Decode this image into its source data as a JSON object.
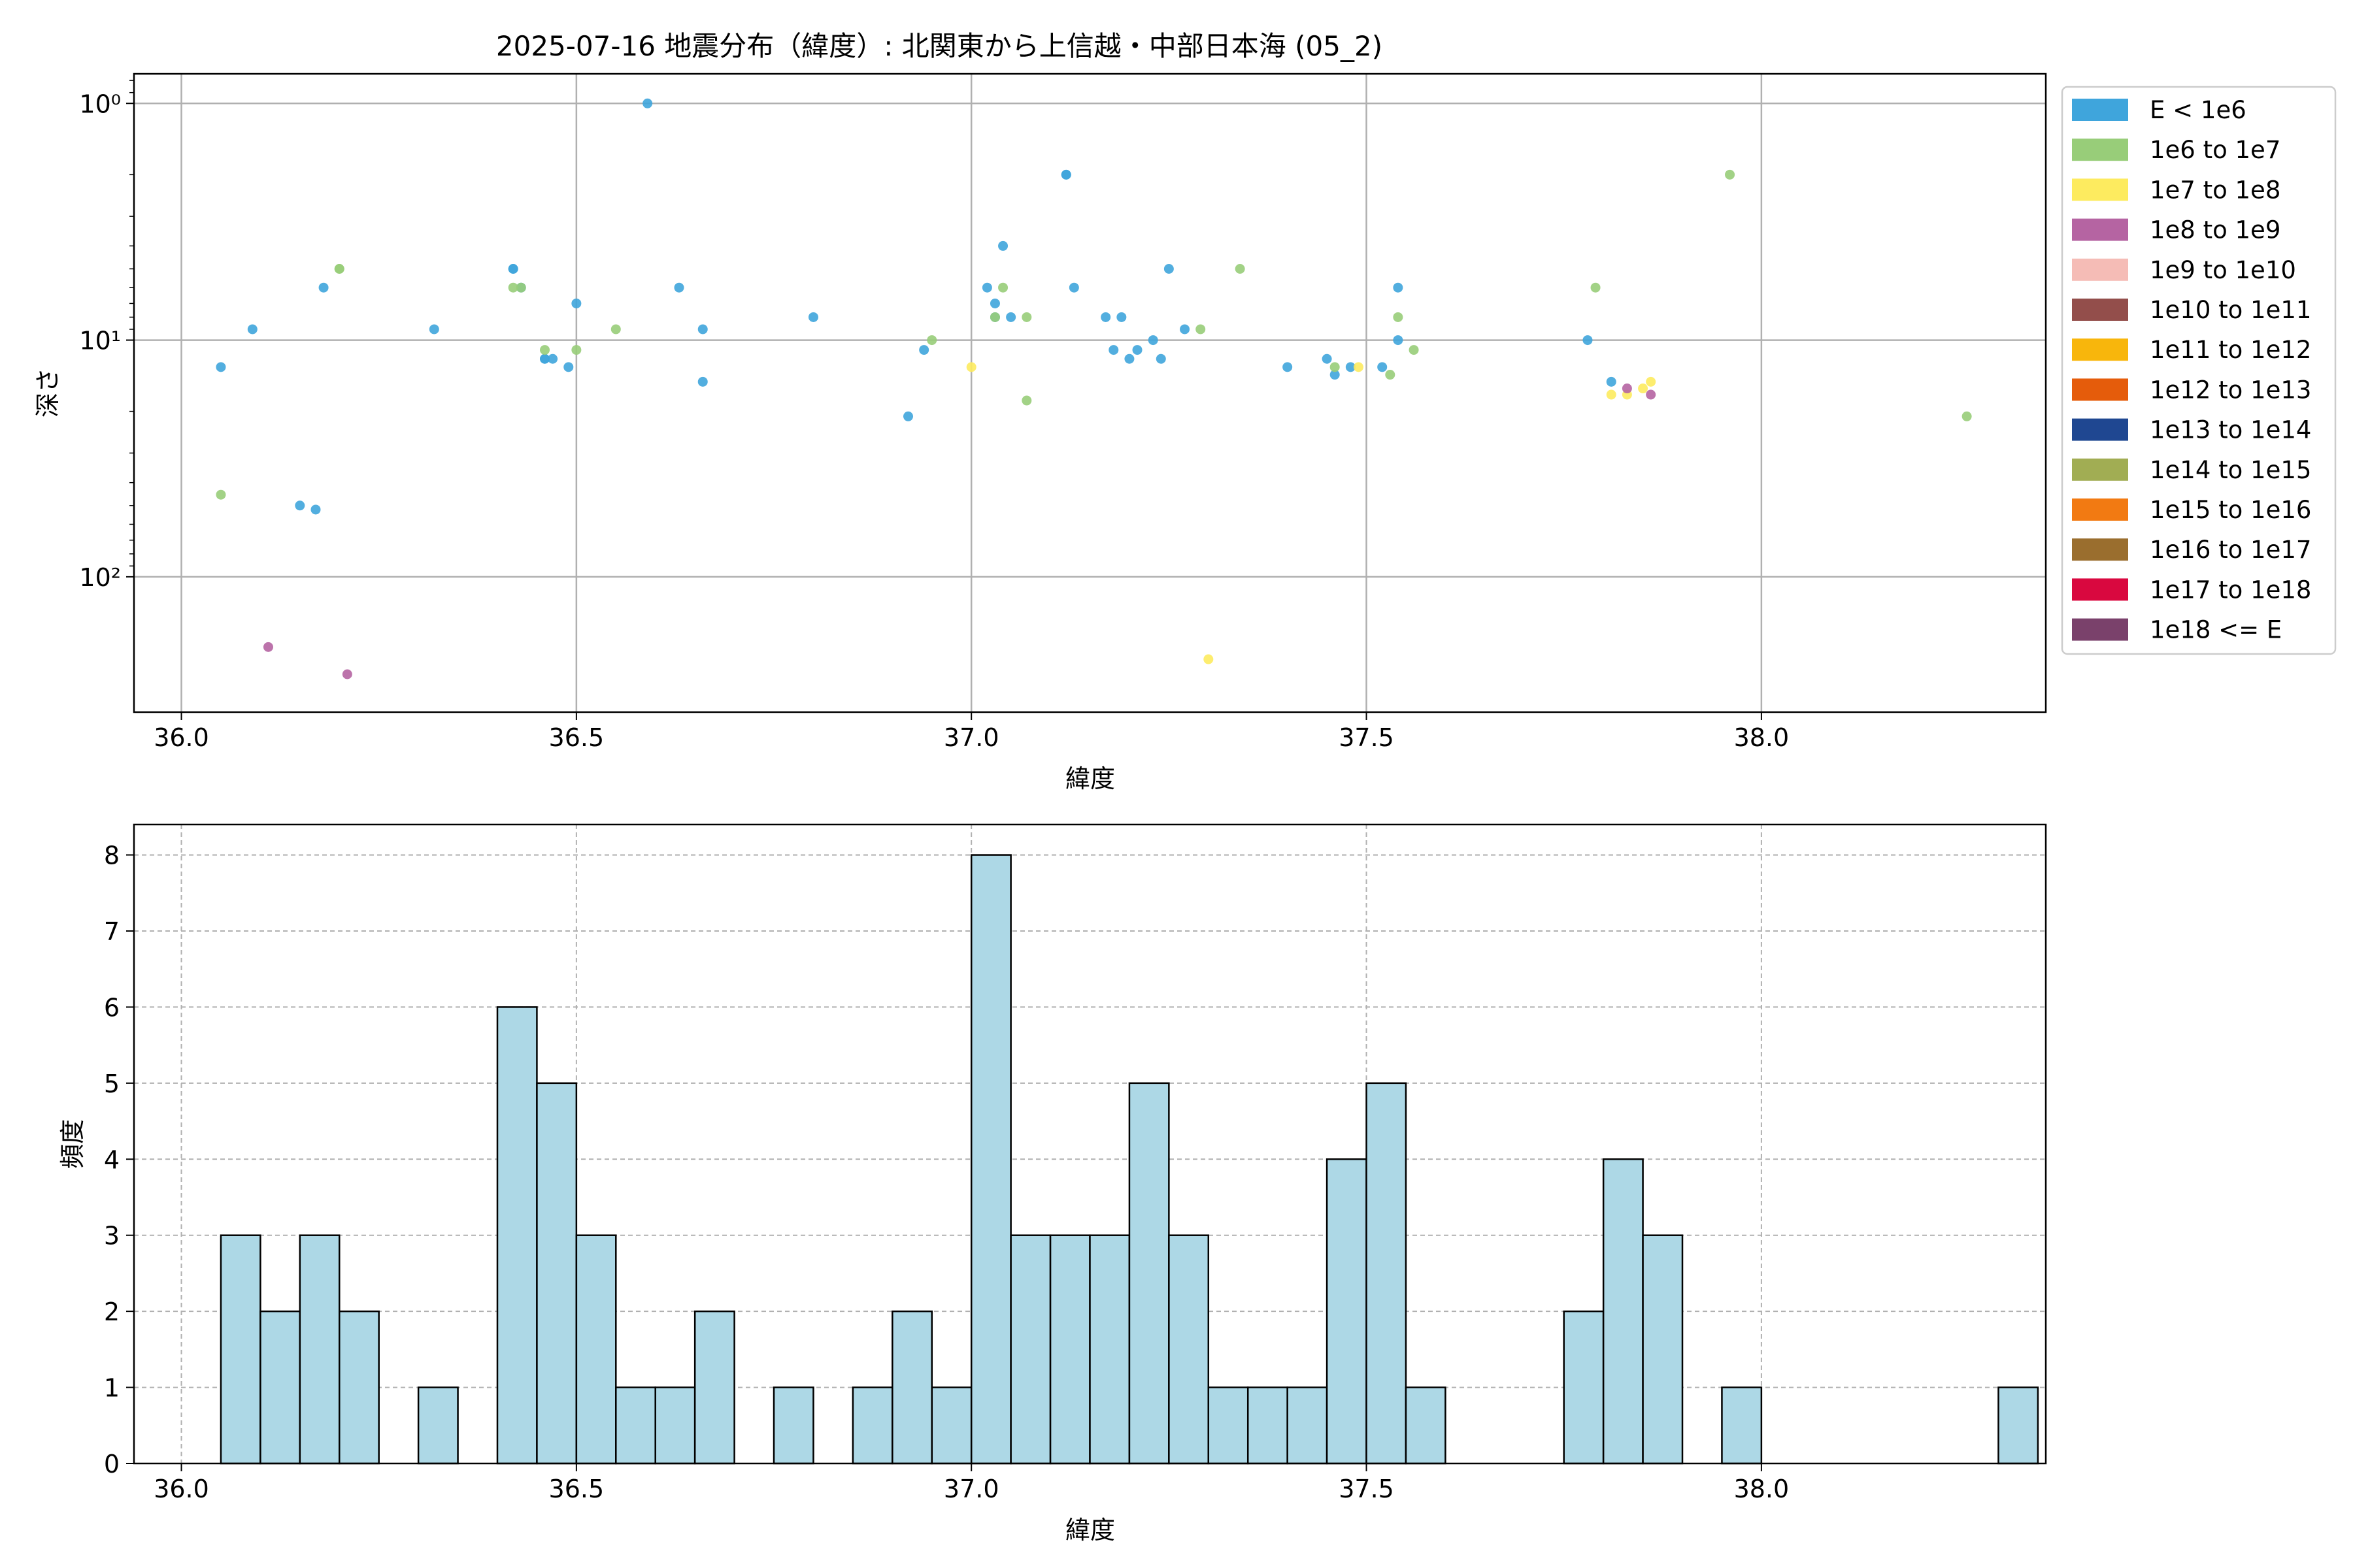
{
  "title": "2025-07-16 地震分布（緯度）: 北関東から上信越・中部日本海 (05_2)",
  "chart_data": [
    {
      "type": "scatter",
      "xlabel": "緯度",
      "ylabel": "深さ",
      "xlim": [
        35.94,
        38.36
      ],
      "ylim": [
        373,
        0.75
      ],
      "yscale": "log",
      "y_inverted": true,
      "grid": true,
      "xticks": [
        36.0,
        36.5,
        37.0,
        37.5,
        38.0
      ],
      "xtick_labels": [
        "36.0",
        "36.5",
        "37.0",
        "37.5",
        "38.0"
      ],
      "yticks": [
        1,
        10,
        100
      ],
      "ytick_labels": [
        "10⁰",
        "10¹",
        "10²"
      ],
      "legend_position": "outside-right",
      "legend": [
        {
          "label": "E < 1e6",
          "color": "#3fa5dc"
        },
        {
          "label": "1e6 to 1e7",
          "color": "#98cd79"
        },
        {
          "label": "1e7 to 1e8",
          "color": "#fdeb5f"
        },
        {
          "label": "1e8 to 1e9",
          "color": "#b564a2"
        },
        {
          "label": "1e9 to 1e10",
          "color": "#f5bcb6"
        },
        {
          "label": "1e10 to 1e11",
          "color": "#934e4b"
        },
        {
          "label": "1e11 to 1e12",
          "color": "#f8b60c"
        },
        {
          "label": "1e12 to 1e13",
          "color": "#e55c0b"
        },
        {
          "label": "1e13 to 1e14",
          "color": "#1f4791"
        },
        {
          "label": "1e14 to 1e15",
          "color": "#a1ad53"
        },
        {
          "label": "1e15 to 1e16",
          "color": "#f27a12"
        },
        {
          "label": "1e16 to 1e17",
          "color": "#9a6e2e"
        },
        {
          "label": "1e17 to 1e18",
          "color": "#d9083f"
        },
        {
          "label": "1e18 <= E",
          "color": "#7a416b"
        }
      ],
      "series": [
        {
          "color": "#3fa5dc",
          "points": [
            [
              36.05,
              13
            ],
            [
              36.09,
              9
            ],
            [
              36.15,
              50
            ],
            [
              36.17,
              52
            ],
            [
              36.18,
              6
            ],
            [
              36.32,
              9
            ],
            [
              36.42,
              5
            ],
            [
              36.42,
              5
            ],
            [
              36.43,
              6
            ],
            [
              36.46,
              12
            ],
            [
              36.46,
              12
            ],
            [
              36.47,
              12
            ],
            [
              36.49,
              13
            ],
            [
              36.5,
              7
            ],
            [
              36.59,
              1
            ],
            [
              36.63,
              6
            ],
            [
              36.66,
              15
            ],
            [
              36.66,
              9
            ],
            [
              36.8,
              8
            ],
            [
              36.92,
              21
            ],
            [
              36.94,
              11
            ],
            [
              37.02,
              6
            ],
            [
              37.03,
              7
            ],
            [
              37.03,
              8
            ],
            [
              37.04,
              4
            ],
            [
              37.05,
              8
            ],
            [
              37.12,
              2
            ],
            [
              37.12,
              2
            ],
            [
              37.13,
              6
            ],
            [
              37.17,
              8
            ],
            [
              37.18,
              11
            ],
            [
              37.19,
              8
            ],
            [
              37.2,
              12
            ],
            [
              37.21,
              11
            ],
            [
              37.23,
              10
            ],
            [
              37.24,
              12
            ],
            [
              37.25,
              5
            ],
            [
              37.27,
              9
            ],
            [
              37.4,
              13
            ],
            [
              37.45,
              12
            ],
            [
              37.46,
              14
            ],
            [
              37.48,
              13
            ],
            [
              37.52,
              13
            ],
            [
              37.54,
              10
            ],
            [
              37.54,
              6
            ],
            [
              37.78,
              10
            ],
            [
              37.81,
              15
            ]
          ]
        },
        {
          "color": "#98cd79",
          "points": [
            [
              36.05,
              45
            ],
            [
              36.2,
              5
            ],
            [
              36.2,
              5
            ],
            [
              36.42,
              6
            ],
            [
              36.43,
              6
            ],
            [
              36.46,
              11
            ],
            [
              36.5,
              11
            ],
            [
              36.55,
              9
            ],
            [
              36.95,
              10
            ],
            [
              37.03,
              8
            ],
            [
              37.04,
              6
            ],
            [
              37.07,
              8
            ],
            [
              37.07,
              18
            ],
            [
              37.29,
              9
            ],
            [
              37.34,
              5
            ],
            [
              37.46,
              13
            ],
            [
              37.53,
              14
            ],
            [
              37.54,
              8
            ],
            [
              37.56,
              11
            ],
            [
              37.79,
              6
            ],
            [
              37.96,
              2
            ],
            [
              38.26,
              21
            ]
          ]
        },
        {
          "color": "#fdeb5f",
          "points": [
            [
              37.0,
              13
            ],
            [
              37.3,
              223
            ],
            [
              37.49,
              13
            ],
            [
              37.81,
              17
            ],
            [
              37.83,
              17
            ],
            [
              37.85,
              16
            ],
            [
              37.86,
              15
            ]
          ]
        },
        {
          "color": "#b564a2",
          "points": [
            [
              36.11,
              198
            ],
            [
              36.21,
              258
            ],
            [
              37.83,
              16
            ],
            [
              37.86,
              17
            ]
          ]
        }
      ]
    },
    {
      "type": "bar",
      "subtype": "histogram",
      "xlabel": "緯度",
      "ylabel": "頻度",
      "xlim": [
        35.94,
        38.36
      ],
      "ylim": [
        0,
        8.4
      ],
      "grid": true,
      "grid_style": "dashed",
      "bar_color": "#add8e6",
      "edge_color": "#000000",
      "xticks": [
        36.0,
        36.5,
        37.0,
        37.5,
        38.0
      ],
      "xtick_labels": [
        "36.0",
        "36.5",
        "37.0",
        "37.5",
        "38.0"
      ],
      "yticks": [
        0,
        1,
        2,
        3,
        4,
        5,
        6,
        7,
        8
      ],
      "ytick_labels": [
        "0",
        "1",
        "2",
        "3",
        "4",
        "5",
        "6",
        "7",
        "8"
      ],
      "bin_start": 36.05,
      "bin_width": 0.05,
      "values": [
        3,
        2,
        3,
        2,
        0,
        1,
        0,
        6,
        5,
        3,
        1,
        1,
        2,
        0,
        1,
        0,
        1,
        2,
        1,
        8,
        3,
        3,
        3,
        5,
        3,
        1,
        1,
        1,
        4,
        5,
        1,
        0,
        0,
        0,
        2,
        4,
        3,
        0,
        1,
        0,
        0,
        0,
        0,
        0,
        0,
        1
      ]
    }
  ]
}
